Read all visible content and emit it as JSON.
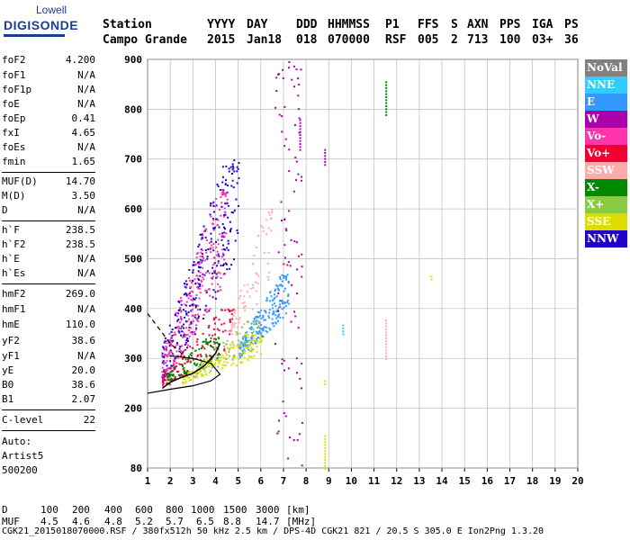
{
  "logo": {
    "top": "Lowell",
    "main": "DIGISONDE"
  },
  "header": {
    "labels": [
      "Station",
      "YYYY",
      "DAY",
      "DDD",
      "HHMMSS",
      "P1",
      "FFS",
      "S",
      "AXN",
      "PPS",
      "IGA",
      "PS"
    ],
    "values": [
      "Campo Grande",
      "2015",
      "Jan18",
      "018",
      "070000",
      "RSF",
      "005",
      "2",
      "713",
      "100",
      "03+",
      "36"
    ]
  },
  "params": [
    {
      "name": "foF2",
      "value": "4.200"
    },
    {
      "name": "foF1",
      "value": "N/A"
    },
    {
      "name": "foF1p",
      "value": "N/A"
    },
    {
      "name": "foE",
      "value": "N/A"
    },
    {
      "name": "foEp",
      "value": "0.41"
    },
    {
      "name": "fxI",
      "value": "4.65"
    },
    {
      "name": "foEs",
      "value": "N/A"
    },
    {
      "name": "fmin",
      "value": "1.65"
    },
    {
      "name": "MUF(D)",
      "value": "14.70"
    },
    {
      "name": "M(D)",
      "value": "3.50"
    },
    {
      "name": "D",
      "value": "N/A"
    },
    {
      "name": "h`F",
      "value": "238.5"
    },
    {
      "name": "h`F2",
      "value": "238.5"
    },
    {
      "name": "h`E",
      "value": "N/A"
    },
    {
      "name": "h`Es",
      "value": "N/A"
    },
    {
      "name": "hmF2",
      "value": "269.0"
    },
    {
      "name": "hmF1",
      "value": "N/A"
    },
    {
      "name": "hmE",
      "value": "110.0"
    },
    {
      "name": "yF2",
      "value": "38.6"
    },
    {
      "name": "yF1",
      "value": "N/A"
    },
    {
      "name": "yE",
      "value": "20.0"
    },
    {
      "name": "B0",
      "value": "38.6"
    },
    {
      "name": "B1",
      "value": "2.07"
    },
    {
      "name": "C-level",
      "value": "22"
    }
  ],
  "auto": {
    "line1": "Auto:",
    "line2": "Artist5",
    "line3": "500200"
  },
  "legend": [
    {
      "label": "NoVal",
      "color": "#808080"
    },
    {
      "label": "NNE",
      "color": "#33ccff"
    },
    {
      "label": "E",
      "color": "#3399ff"
    },
    {
      "label": "W",
      "color": "#aa00aa"
    },
    {
      "label": "Vo-",
      "color": "#ff33aa"
    },
    {
      "label": "Vo+",
      "color": "#ee0033"
    },
    {
      "label": "SSW",
      "color": "#ffaaaa"
    },
    {
      "label": "X-",
      "color": "#008800"
    },
    {
      "label": "X+",
      "color": "#88cc44"
    },
    {
      "label": "SSE",
      "color": "#dddd00"
    },
    {
      "label": "NNW",
      "color": "#2200cc"
    }
  ],
  "muf_table": {
    "d_label": "D",
    "distances": [
      "100",
      "200",
      "400",
      "600",
      "800",
      "1000",
      "1500",
      "3000",
      "[km]"
    ],
    "muf_label": "MUF",
    "mufs": [
      "4.5",
      "4.6",
      "4.8",
      "5.2",
      "5.7",
      "6.5",
      "8.8",
      "14.7",
      "[MHz]"
    ]
  },
  "footer": "CGK21_2015018070000.RSF / 380fx512h 50 kHz 2.5 km / DPS-4D CGK21 821 / 20.5 S 305.0 E Ion2Png 1.3.20",
  "chart_data": {
    "type": "scatter",
    "x_ticks": [
      1,
      2,
      3,
      4,
      5,
      6,
      7,
      8,
      9,
      10,
      11,
      12,
      13,
      14,
      15,
      16,
      17,
      18,
      19,
      20
    ],
    "y_ticks": [
      80,
      200,
      300,
      400,
      500,
      600,
      700,
      800,
      900
    ],
    "xlim": [
      1,
      20
    ],
    "ylim": [
      80,
      900
    ],
    "grid": true,
    "trace_profile": [
      [
        1.65,
        240
      ],
      [
        2.0,
        252
      ],
      [
        2.5,
        262
      ],
      [
        3.0,
        270
      ],
      [
        3.5,
        285
      ],
      [
        4.0,
        310
      ],
      [
        4.2,
        330
      ]
    ],
    "model_profile": [
      [
        1.0,
        230
      ],
      [
        2.0,
        238
      ],
      [
        3.0,
        245
      ],
      [
        3.8,
        255
      ],
      [
        4.2,
        268
      ],
      [
        3.8,
        290
      ],
      [
        3.0,
        300
      ],
      [
        2.0,
        305
      ]
    ],
    "extrapolated_profile": [
      [
        1.0,
        390
      ],
      [
        1.5,
        360
      ],
      [
        2.0,
        330
      ],
      [
        2.5,
        310
      ]
    ],
    "clusters": [
      {
        "color_key": "NNW",
        "x_range": [
          1.6,
          5.0
        ],
        "y_range": [
          240,
          700
        ],
        "density": 300
      },
      {
        "color_key": "Vo-",
        "x_range": [
          1.6,
          4.5
        ],
        "y_range": [
          240,
          640
        ],
        "density": 250
      },
      {
        "color_key": "E",
        "x_range": [
          5.0,
          7.2
        ],
        "y_range": [
          300,
          470
        ],
        "density": 220
      },
      {
        "color_key": "Vo+",
        "x_range": [
          1.6,
          4.8
        ],
        "y_range": [
          240,
          400
        ],
        "density": 120
      },
      {
        "color_key": "SSE",
        "x_range": [
          2.5,
          6.0
        ],
        "y_range": [
          250,
          350
        ],
        "density": 160
      },
      {
        "color_key": "X-",
        "x_range": [
          1.8,
          4.2
        ],
        "y_range": [
          250,
          350
        ],
        "density": 80
      },
      {
        "color_key": "W",
        "x_range": [
          6.6,
          7.8
        ],
        "y_range": [
          80,
          900
        ],
        "density": 90
      },
      {
        "color_key": "SSW",
        "x_range": [
          4.5,
          6.5
        ],
        "y_range": [
          300,
          600
        ],
        "density": 70
      },
      {
        "color_key": "X+",
        "x_range": [
          3.0,
          6.0
        ],
        "y_range": [
          260,
          380
        ],
        "density": 60
      }
    ],
    "isolated_points": [
      {
        "color_key": "X-",
        "x": 11.5,
        "y": [
          790,
          860
        ]
      },
      {
        "color_key": "SSW",
        "x": 11.5,
        "y": [
          300,
          380
        ]
      },
      {
        "color_key": "SSE",
        "x": 13.5,
        "y": [
          460,
          470
        ]
      },
      {
        "color_key": "NNE",
        "x": 9.6,
        "y": [
          350,
          370
        ]
      },
      {
        "color_key": "SSE",
        "x": 8.8,
        "y": [
          80,
          150
        ]
      },
      {
        "color_key": "W",
        "x": 8.8,
        "y": [
          690,
          720
        ]
      },
      {
        "color_key": "SSE",
        "x": 8.8,
        "y": [
          250,
          260
        ]
      },
      {
        "color_key": "W",
        "x": 7.7,
        "y": [
          720,
          780
        ]
      }
    ]
  }
}
